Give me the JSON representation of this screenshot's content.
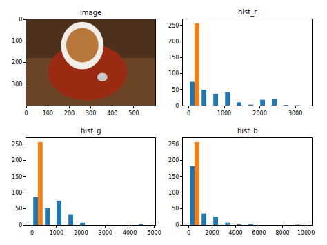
{
  "chart_data": [
    {
      "type": "image",
      "title": "image",
      "xlim": [
        -0.5,
        599.5
      ],
      "ylim": [
        399.5,
        -0.5
      ],
      "xticks": [
        0,
        100,
        200,
        300,
        400,
        500
      ],
      "yticks": [
        0,
        100,
        200,
        300
      ]
    },
    {
      "type": "histogram",
      "title": "hist_r",
      "bins": [
        0,
        330,
        660,
        990,
        1320,
        1650,
        1980,
        2310,
        2640,
        2970,
        3300
      ],
      "series": [
        {
          "color": "#1f77b4",
          "values": [
            74,
            49,
            37,
            42,
            10,
            3,
            18,
            20,
            2,
            1
          ]
        },
        {
          "color": "#ff7f0e",
          "values": [
            256,
            0,
            0,
            0,
            0,
            0,
            0,
            0,
            0,
            0
          ]
        }
      ],
      "xlim": [
        -165,
        3465
      ],
      "ylim": [
        0,
        268.8
      ],
      "xticks": [
        0,
        1000,
        2000,
        3000
      ],
      "yticks": [
        0,
        50,
        100,
        150,
        200,
        250
      ]
    },
    {
      "type": "histogram",
      "title": "hist_g",
      "bins": [
        0,
        480,
        960,
        1440,
        1920,
        2400,
        2880,
        3360,
        3840,
        4320,
        4800
      ],
      "series": [
        {
          "color": "#1f77b4",
          "values": [
            86,
            52,
            75,
            33,
            7,
            0,
            0,
            0,
            0,
            3
          ]
        },
        {
          "color": "#ff7f0e",
          "values": [
            256,
            0,
            0,
            0,
            0,
            0,
            0,
            0,
            0,
            0
          ]
        }
      ],
      "xlim": [
        -240,
        5040
      ],
      "ylim": [
        0,
        268.8
      ],
      "xticks": [
        0,
        1000,
        2000,
        3000,
        4000,
        5000
      ],
      "yticks": [
        0,
        50,
        100,
        150,
        200,
        250
      ]
    },
    {
      "type": "histogram",
      "title": "hist_b",
      "bins": [
        0,
        1000,
        2000,
        3000,
        4000,
        5000,
        6000,
        7000,
        8000,
        9000,
        10000
      ],
      "series": [
        {
          "color": "#1f77b4",
          "values": [
            182,
            35,
            25,
            7,
            2,
            4,
            0,
            0,
            0,
            1
          ]
        },
        {
          "color": "#ff7f0e",
          "values": [
            256,
            0,
            0,
            0,
            0,
            0,
            0,
            0,
            0,
            0
          ]
        }
      ],
      "xlim": [
        -500,
        10500
      ],
      "ylim": [
        0,
        268.8
      ],
      "xticks": [
        0,
        2000,
        4000,
        6000,
        8000,
        10000
      ],
      "yticks": [
        0,
        50,
        100,
        150,
        200,
        250
      ]
    }
  ]
}
